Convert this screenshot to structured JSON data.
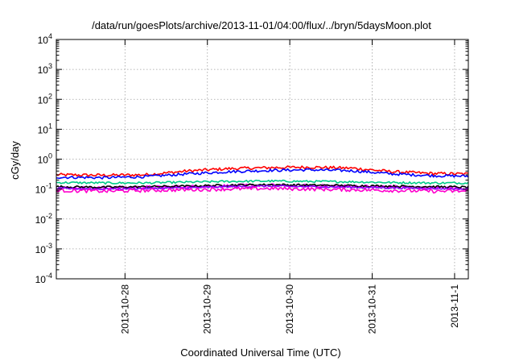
{
  "chart_data": {
    "type": "line",
    "title": "/data/run/goesPlots/archive/2013-11-01/04:00/flux/../bryn/5daysMoon.plot",
    "xlabel": "Coordinated Universal Time (UTC)",
    "ylabel": "cGy/day",
    "yscale": "log",
    "ylim": [
      0.0001,
      10000
    ],
    "xlim": [
      "2013-10-27 04:00",
      "2013-11-01 04:00"
    ],
    "grid": true,
    "y_ticks": [
      {
        "base": "10",
        "exp": "-4",
        "value": 0.0001
      },
      {
        "base": "10",
        "exp": "-3",
        "value": 0.001
      },
      {
        "base": "10",
        "exp": "-2",
        "value": 0.01
      },
      {
        "base": "10",
        "exp": "-1",
        "value": 0.1
      },
      {
        "base": "10",
        "exp": "0",
        "value": 1
      },
      {
        "base": "10",
        "exp": "1",
        "value": 10
      },
      {
        "base": "10",
        "exp": "2",
        "value": 100
      },
      {
        "base": "10",
        "exp": "3",
        "value": 1000
      },
      {
        "base": "10",
        "exp": "4",
        "value": 10000
      }
    ],
    "x_ticks": [
      {
        "label": "2013-10-28",
        "time": "2013-10-28 00:00"
      },
      {
        "label": "2013-10-29",
        "time": "2013-10-29 00:00"
      },
      {
        "label": "2013-10-30",
        "time": "2013-10-30 00:00"
      },
      {
        "label": "2013-10-31",
        "time": "2013-10-31 00:00"
      },
      {
        "label": "2013-11-1",
        "time": "2013-11-01 00:00"
      }
    ],
    "series": [
      {
        "color": "#ff0000",
        "noise": 0.05,
        "points": [
          [
            "2013-10-27 04:00",
            0.3
          ],
          [
            "2013-10-27 18:00",
            0.29
          ],
          [
            "2013-10-28 06:00",
            0.3
          ],
          [
            "2013-10-28 18:00",
            0.4
          ],
          [
            "2013-10-29 06:00",
            0.48
          ],
          [
            "2013-10-29 18:00",
            0.52
          ],
          [
            "2013-10-30 06:00",
            0.54
          ],
          [
            "2013-10-30 18:00",
            0.5
          ],
          [
            "2013-10-31 06:00",
            0.38
          ],
          [
            "2013-10-31 18:00",
            0.33
          ],
          [
            "2013-11-01 04:00",
            0.32
          ]
        ]
      },
      {
        "color": "#0000ff",
        "noise": 0.045,
        "points": [
          [
            "2013-10-27 04:00",
            0.25
          ],
          [
            "2013-10-27 18:00",
            0.24
          ],
          [
            "2013-10-28 06:00",
            0.26
          ],
          [
            "2013-10-28 18:00",
            0.32
          ],
          [
            "2013-10-29 06:00",
            0.38
          ],
          [
            "2013-10-29 18:00",
            0.42
          ],
          [
            "2013-10-30 06:00",
            0.44
          ],
          [
            "2013-10-30 18:00",
            0.41
          ],
          [
            "2013-10-31 06:00",
            0.32
          ],
          [
            "2013-10-31 18:00",
            0.28
          ],
          [
            "2013-11-01 04:00",
            0.27
          ]
        ]
      },
      {
        "color": "#00cc88",
        "noise": 0.035,
        "points": [
          [
            "2013-10-27 04:00",
            0.165
          ],
          [
            "2013-10-27 18:00",
            0.16
          ],
          [
            "2013-10-28 06:00",
            0.16
          ],
          [
            "2013-10-28 18:00",
            0.17
          ],
          [
            "2013-10-29 06:00",
            0.18
          ],
          [
            "2013-10-29 18:00",
            0.185
          ],
          [
            "2013-10-30 06:00",
            0.18
          ],
          [
            "2013-10-30 18:00",
            0.175
          ],
          [
            "2013-10-31 06:00",
            0.165
          ],
          [
            "2013-10-31 18:00",
            0.16
          ],
          [
            "2013-11-01 04:00",
            0.16
          ]
        ]
      },
      {
        "color": "#ff00ff",
        "noise": 0.05,
        "points": [
          [
            "2013-10-27 04:00",
            0.11
          ],
          [
            "2013-10-27 18:00",
            0.11
          ],
          [
            "2013-10-28 06:00",
            0.115
          ],
          [
            "2013-10-28 18:00",
            0.12
          ],
          [
            "2013-10-29 06:00",
            0.13
          ],
          [
            "2013-10-29 18:00",
            0.135
          ],
          [
            "2013-10-30 06:00",
            0.13
          ],
          [
            "2013-10-30 18:00",
            0.125
          ],
          [
            "2013-10-31 06:00",
            0.12
          ],
          [
            "2013-10-31 18:00",
            0.11
          ],
          [
            "2013-11-01 04:00",
            0.105
          ]
        ]
      },
      {
        "color": "#000000",
        "noise": 0.035,
        "points": [
          [
            "2013-10-27 04:00",
            0.12
          ],
          [
            "2013-10-27 18:00",
            0.115
          ],
          [
            "2013-10-28 06:00",
            0.12
          ],
          [
            "2013-10-28 18:00",
            0.125
          ],
          [
            "2013-10-29 06:00",
            0.135
          ],
          [
            "2013-10-29 18:00",
            0.14
          ],
          [
            "2013-10-30 06:00",
            0.135
          ],
          [
            "2013-10-30 18:00",
            0.13
          ],
          [
            "2013-10-31 06:00",
            0.125
          ],
          [
            "2013-10-31 18:00",
            0.12
          ],
          [
            "2013-11-01 04:00",
            0.115
          ]
        ]
      },
      {
        "color": "#8800ff",
        "noise": 0.03,
        "points": [
          [
            "2013-10-27 04:00",
            0.105
          ],
          [
            "2013-10-27 18:00",
            0.1
          ],
          [
            "2013-10-28 06:00",
            0.105
          ],
          [
            "2013-10-28 18:00",
            0.11
          ],
          [
            "2013-10-29 06:00",
            0.12
          ],
          [
            "2013-10-29 18:00",
            0.125
          ],
          [
            "2013-10-30 06:00",
            0.12
          ],
          [
            "2013-10-30 18:00",
            0.115
          ],
          [
            "2013-10-31 06:00",
            0.11
          ],
          [
            "2013-10-31 18:00",
            0.105
          ],
          [
            "2013-11-01 04:00",
            0.1
          ]
        ]
      },
      {
        "color": "#ff00cc",
        "noise": 0.06,
        "points": [
          [
            "2013-10-27 04:00",
            0.09
          ],
          [
            "2013-10-27 18:00",
            0.085
          ],
          [
            "2013-10-28 06:00",
            0.09
          ],
          [
            "2013-10-28 18:00",
            0.095
          ],
          [
            "2013-10-29 06:00",
            0.1
          ],
          [
            "2013-10-29 18:00",
            0.105
          ],
          [
            "2013-10-30 06:00",
            0.1
          ],
          [
            "2013-10-30 18:00",
            0.095
          ],
          [
            "2013-10-31 06:00",
            0.09
          ],
          [
            "2013-10-31 18:00",
            0.085
          ],
          [
            "2013-11-01 04:00",
            0.085
          ]
        ]
      }
    ]
  }
}
